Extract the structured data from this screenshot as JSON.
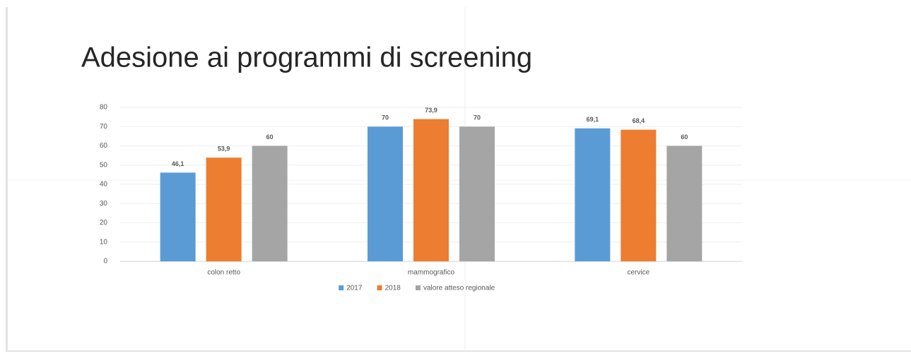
{
  "chart_data": {
    "type": "bar",
    "title": "Adesione ai programmi di screening",
    "categories": [
      "colon retto",
      "mammografico",
      "cervice"
    ],
    "series": [
      {
        "name": "2017",
        "color": "#5b9bd5",
        "values": [
          46.1,
          70,
          69.1
        ],
        "value_labels": [
          "46,1",
          "70",
          "69,1"
        ]
      },
      {
        "name": "2018",
        "color": "#ed7d31",
        "values": [
          53.9,
          73.9,
          68.4
        ],
        "value_labels": [
          "53,9",
          "73,9",
          "68,4"
        ]
      },
      {
        "name": "valore atteso regionale",
        "color": "#a5a5a5",
        "values": [
          60,
          70,
          60
        ],
        "value_labels": [
          "60",
          "70",
          "60"
        ]
      }
    ],
    "ylim": [
      0,
      80
    ],
    "yticks": [
      0,
      10,
      20,
      30,
      40,
      50,
      60,
      70,
      80
    ],
    "grid": true,
    "legend": "bottom"
  }
}
